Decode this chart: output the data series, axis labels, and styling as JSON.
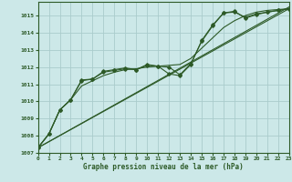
{
  "title": "Graphe pression niveau de la mer (hPa)",
  "bg_color": "#cce8e8",
  "grid_color": "#aacccc",
  "line_color": "#2d5a27",
  "xlim": [
    0,
    23
  ],
  "ylim": [
    1007,
    1015.8
  ],
  "yticks": [
    1007,
    1008,
    1009,
    1010,
    1011,
    1012,
    1013,
    1014,
    1015
  ],
  "xticks": [
    0,
    1,
    2,
    3,
    4,
    5,
    6,
    7,
    8,
    9,
    10,
    11,
    12,
    13,
    14,
    15,
    16,
    17,
    18,
    19,
    20,
    21,
    22,
    23
  ],
  "straight_line1": {
    "x": [
      0,
      23
    ],
    "y": [
      1007.3,
      1015.5
    ]
  },
  "straight_line2": {
    "x": [
      0,
      23
    ],
    "y": [
      1007.3,
      1015.4
    ]
  },
  "smooth_line": [
    1007.3,
    1008.1,
    1009.5,
    1010.1,
    1010.9,
    1011.2,
    1011.5,
    1011.7,
    1011.85,
    1011.9,
    1012.0,
    1012.05,
    1012.1,
    1012.15,
    1012.5,
    1013.1,
    1013.7,
    1014.3,
    1014.7,
    1015.0,
    1015.2,
    1015.3,
    1015.35,
    1015.4
  ],
  "marker_line1": [
    1007.3,
    1008.1,
    1009.5,
    1010.1,
    1011.2,
    1011.3,
    1011.7,
    1011.8,
    1011.9,
    1011.85,
    1012.1,
    1012.05,
    1012.0,
    1011.55,
    1012.2,
    1013.5,
    1014.4,
    1015.15,
    1015.2,
    1014.9,
    1015.1,
    1015.2,
    1015.3,
    1015.4
  ],
  "marker_line2": [
    1007.3,
    1008.1,
    1009.5,
    1010.1,
    1011.25,
    1011.3,
    1011.75,
    1011.85,
    1011.95,
    1011.85,
    1012.15,
    1012.05,
    1011.6,
    1011.5,
    1012.15,
    1013.55,
    1014.45,
    1015.15,
    1015.25,
    1014.85,
    1015.05,
    1015.2,
    1015.3,
    1015.4
  ]
}
